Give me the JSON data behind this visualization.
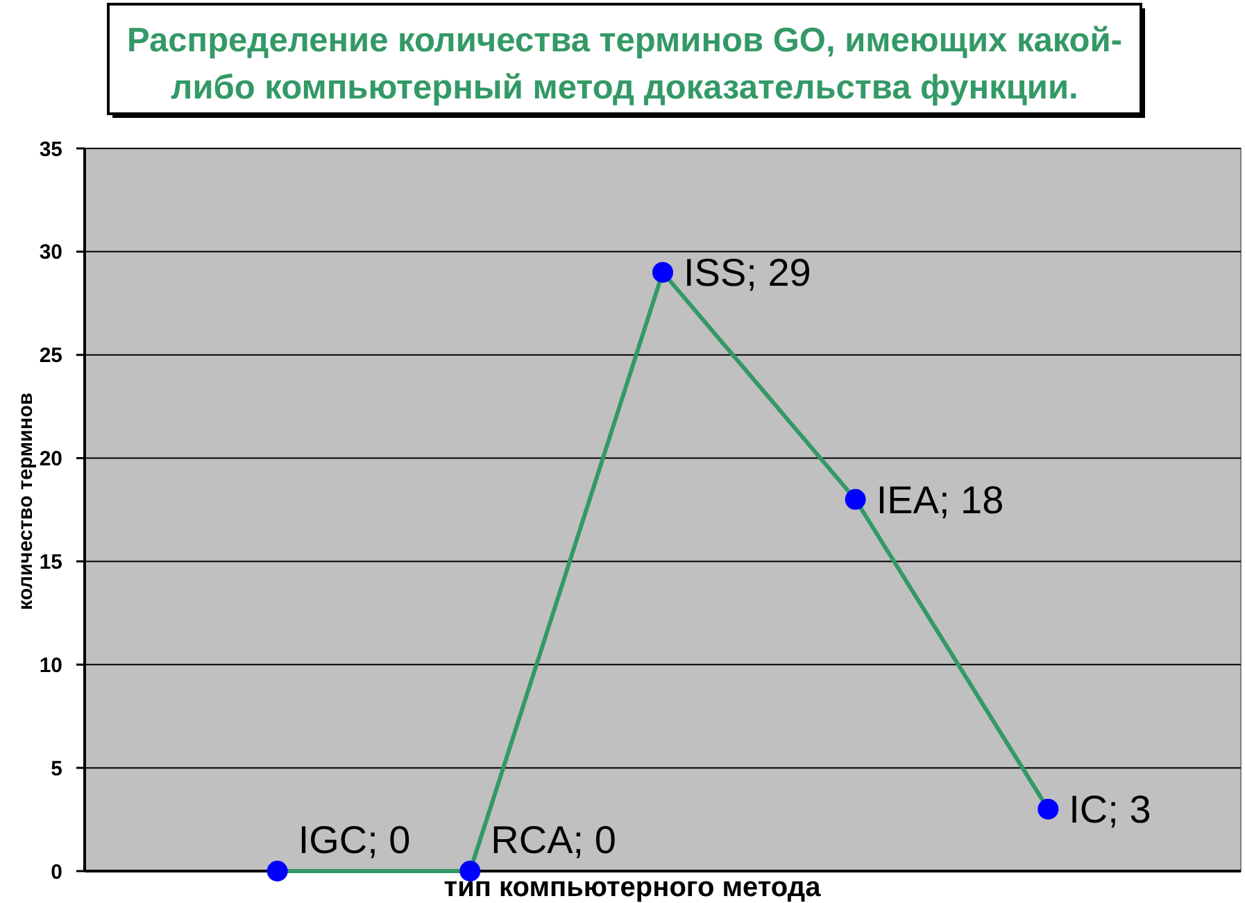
{
  "chart_data": {
    "type": "line",
    "title": "Распределение количества терминов GO, имеющих какой-либо компьютерный метод доказательства функции.",
    "xlabel": "тип компьютерного метода",
    "ylabel": "количество терминов",
    "categories": [
      null,
      null,
      null,
      null,
      null
    ],
    "series": [
      {
        "color": "#339966",
        "colors": [
          "#0000ff",
          "#0000ff",
          "#0000ff",
          "#0000ff",
          "#0000ff"
        ],
        "values": [
          0,
          0,
          29,
          18,
          3
        ],
        "value_labels": [
          "IGC; 0",
          "RCA; 0",
          "ISS; 29",
          "IEA; 18",
          "IC; 3"
        ]
      }
    ],
    "ylim": [
      0,
      35
    ],
    "yticks": [
      0,
      5,
      10,
      15,
      20,
      25,
      30,
      35
    ],
    "grid": "y",
    "marker": "circle",
    "line_style": "solid",
    "tick_labels": "y"
  }
}
